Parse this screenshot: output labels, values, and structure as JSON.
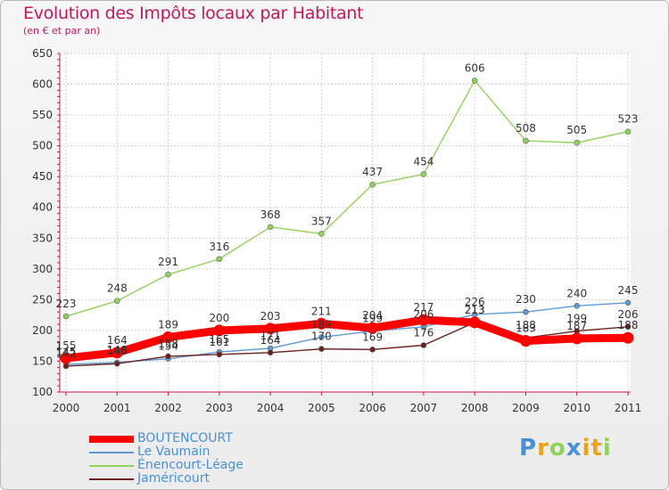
{
  "chart_data": {
    "type": "line",
    "title": "Evolution des Impôts locaux par Habitant",
    "subtitle": "(en € et par an)",
    "x": [
      "2000",
      "2001",
      "2002",
      "2003",
      "2004",
      "2005",
      "2006",
      "2007",
      "2008",
      "2009",
      "2010",
      "2011"
    ],
    "ylim": [
      100,
      650
    ],
    "yticks": [
      100,
      150,
      200,
      250,
      300,
      350,
      400,
      450,
      500,
      550,
      600,
      650
    ],
    "grid": true,
    "legend_position": "bottom-left",
    "series": [
      {
        "name": "BOUTENCOURT",
        "color": "#ff0000",
        "values": [
          155,
          164,
          189,
          200,
          203,
          211,
          204,
          217,
          213,
          183,
          187,
          188
        ]
      },
      {
        "name": "Le Vaumain",
        "color": "#5b9bd5",
        "values": [
          145,
          148,
          154,
          165,
          171,
          189,
          199,
          206,
          226,
          230,
          240,
          245
        ]
      },
      {
        "name": "Énencourt-Léage",
        "color": "#8fd35a",
        "values": [
          223,
          248,
          291,
          316,
          368,
          357,
          437,
          454,
          606,
          508,
          505,
          523
        ]
      },
      {
        "name": "Jaméricourt",
        "color": "#6b1f1f",
        "values": [
          142,
          146,
          158,
          161,
          164,
          170,
          169,
          176,
          213,
          188,
          199,
          206
        ]
      }
    ]
  },
  "logo": {
    "text": "Proxiti"
  }
}
